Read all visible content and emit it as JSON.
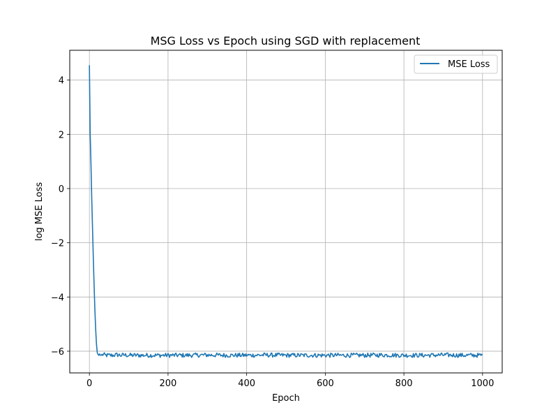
{
  "chart_data": {
    "type": "line",
    "title": "MSG Loss vs Epoch using SGD with replacement",
    "xlabel": "Epoch",
    "ylabel": "log MSE Loss",
    "xlim": [
      -50,
      1050
    ],
    "ylim": [
      -6.8,
      5.1
    ],
    "xticks": [
      0,
      200,
      400,
      600,
      800,
      1000
    ],
    "xtick_labels": [
      "0",
      "200",
      "400",
      "600",
      "800",
      "1000"
    ],
    "yticks": [
      -6,
      -4,
      -2,
      0,
      2,
      4
    ],
    "ytick_labels": [
      "−6",
      "−4",
      "−2",
      "0",
      "2",
      "4"
    ],
    "grid": true,
    "legend_position": "top-right",
    "series": [
      {
        "name": "MSE Loss",
        "color": "#1f77b4",
        "x": [
          0,
          2,
          4,
          6,
          8,
          10,
          12,
          14,
          16,
          18,
          20,
          22,
          24,
          26,
          28,
          30,
          35,
          40,
          50,
          60,
          70,
          80,
          90,
          100,
          150,
          200,
          250,
          300,
          350,
          400,
          450,
          500,
          550,
          600,
          650,
          700,
          750,
          800,
          850,
          900,
          950,
          1000
        ],
        "values": [
          4.55,
          2.0,
          0.9,
          -0.4,
          -1.5,
          -2.6,
          -3.6,
          -4.5,
          -5.2,
          -5.75,
          -6.05,
          -6.12,
          -6.15,
          -6.1,
          -6.15,
          -6.15,
          -6.12,
          -6.15,
          -6.15,
          -6.15,
          -6.13,
          -6.15,
          -6.14,
          -6.15,
          -6.15,
          -6.15,
          -6.15,
          -6.14,
          -6.15,
          -6.15,
          -6.14,
          -6.15,
          -6.15,
          -6.15,
          -6.15,
          -6.15,
          -6.14,
          -6.15,
          -6.15,
          -6.14,
          -6.15,
          -6.15
        ],
        "noise_after_epoch": 30,
        "noise_amplitude": 0.08
      }
    ]
  }
}
